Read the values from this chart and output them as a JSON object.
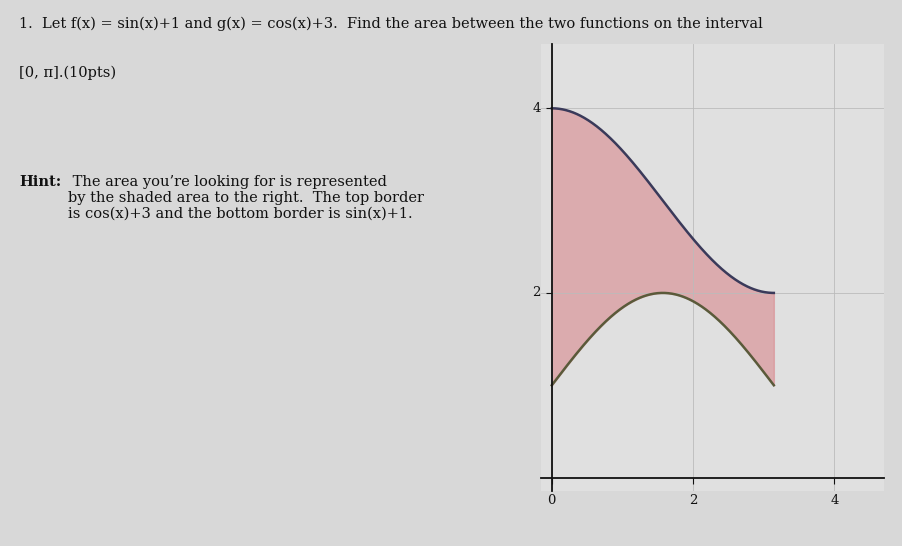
{
  "x_start": 0,
  "x_end": 3.14159265358979,
  "x_axis_min": -0.15,
  "x_axis_max": 4.7,
  "y_axis_min": -0.15,
  "y_axis_max": 4.7,
  "x_ticks": [
    0,
    2,
    4
  ],
  "y_ticks": [
    2,
    4
  ],
  "fill_color": "#d9898e",
  "fill_alpha": 0.6,
  "top_line_color": "#3a3a5a",
  "bottom_line_color": "#5a5a3a",
  "line_width": 1.8,
  "grid_color": "#bbbbbb",
  "grid_linewidth": 0.6,
  "plot_bg_color": "#e0e0e0",
  "fig_bg_color": "#d8d8d8",
  "axes_color": "#111111",
  "text_color": "#111111",
  "font_size_text": 10.5,
  "font_size_tick": 9.5,
  "title_text1": "1.  Let ",
  "title_math1": "f(x) = sin(x)+1",
  "title_text2": " and ",
  "title_math2": "g(x) = cos(x)+3",
  "title_text3": ".  Find the area between the two functions on the interval",
  "title_line2": "[0, π].(10",
  "hint_bold": "Hint:",
  "hint_rest": " The area you’re looking for is represented\nby the shaded area to the right.  The top border\nis cos(x)+3 and the bottom border is sin(x)+1."
}
